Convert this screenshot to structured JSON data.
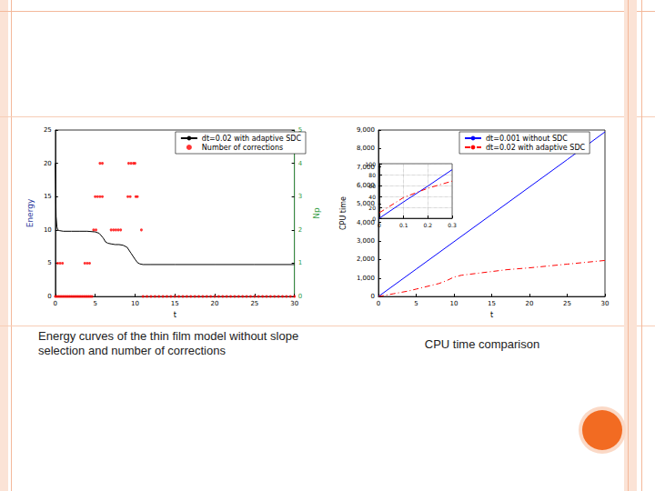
{
  "chart_data": [
    {
      "type": "line",
      "caption": "Energy curves of the thin film model without slope selection and number of corrections",
      "x_label": "t",
      "y_label": "Energy",
      "y2_label": "Np",
      "xlim": [
        0,
        30
      ],
      "xticks": [
        0,
        5,
        10,
        15,
        20,
        25,
        30
      ],
      "ylim": [
        0,
        25
      ],
      "yticks": [
        0,
        5,
        10,
        15,
        20,
        25
      ],
      "y2lim": [
        0,
        5
      ],
      "y2ticks": [
        0,
        1,
        2,
        3,
        4,
        5
      ],
      "grid": false,
      "legend": "upper right",
      "series": [
        {
          "name": "dt=0.02 with adaptive SDC",
          "type": "line",
          "color": "#000000",
          "line_style": "solid",
          "x": [
            0,
            0.05,
            0.1,
            0.2,
            0.3,
            0.5,
            1,
            2,
            3,
            4,
            5,
            5.5,
            6,
            6.3,
            6.6,
            7,
            7.5,
            8,
            8.5,
            9,
            9.5,
            10,
            10.3,
            10.6,
            11,
            12,
            15,
            20,
            25,
            30
          ],
          "values": [
            20,
            16,
            12,
            10.5,
            10,
            9.9,
            9.8,
            9.8,
            9.8,
            9.8,
            9.7,
            9.5,
            8.8,
            8.2,
            8.0,
            7.9,
            7.8,
            7.8,
            7.7,
            7.4,
            6.5,
            5.6,
            5.1,
            4.9,
            4.8,
            4.8,
            4.8,
            4.8,
            4.8,
            4.8
          ]
        },
        {
          "name": "Number of corrections",
          "type": "scatter",
          "color": "#ff0000",
          "marker": "dot",
          "axis": "y2",
          "x": [
            0,
            0.2,
            0.4,
            0.6,
            0.8,
            1,
            1.2,
            1.4,
            1.6,
            1.8,
            2,
            2.2,
            2.4,
            2.6,
            2.8,
            3,
            3.2,
            3.4,
            3.6,
            3.8,
            4,
            4.2,
            4.4,
            4.6,
            11,
            11.5,
            12,
            12.5,
            13,
            13.5,
            14,
            14.5,
            15,
            15.5,
            16,
            16.5,
            17,
            17.5,
            18,
            18.5,
            19,
            19.5,
            20,
            20.5,
            21,
            21.5,
            22,
            22.5,
            23,
            23.5,
            24,
            24.5,
            25,
            25.5,
            26,
            26.5,
            27,
            27.5,
            28,
            28.5,
            29,
            29.5,
            30,
            0.3,
            0.6,
            0.9,
            3.7,
            4.0,
            4.3,
            4.8,
            5.1,
            7.0,
            7.3,
            7.6,
            7.9,
            8.2,
            10.8,
            5.0,
            5.3,
            5.6,
            5.9,
            9.1,
            9.4,
            10.1,
            10.3,
            5.6,
            5.9,
            9.2,
            9.5,
            9.8,
            10.0
          ],
          "values": [
            0,
            0,
            0,
            0,
            0,
            0,
            0,
            0,
            0,
            0,
            0,
            0,
            0,
            0,
            0,
            0,
            0,
            0,
            0,
            0,
            0,
            0,
            0,
            0,
            0,
            0,
            0,
            0,
            0,
            0,
            0,
            0,
            0,
            0,
            0,
            0,
            0,
            0,
            0,
            0,
            0,
            0,
            0,
            0,
            0,
            0,
            0,
            0,
            0,
            0,
            0,
            0,
            0,
            0,
            0,
            0,
            0,
            0,
            0,
            0,
            0,
            0,
            0,
            1,
            1,
            1,
            1,
            1,
            1,
            2,
            2,
            2,
            2,
            2,
            2,
            2,
            2,
            3,
            3,
            3,
            3,
            3,
            3,
            3,
            3,
            4,
            4,
            4,
            4,
            4,
            4
          ]
        }
      ]
    },
    {
      "type": "line",
      "caption": "CPU time comparison",
      "x_label": "t",
      "y_label": "CPU time",
      "xlim": [
        0,
        30
      ],
      "xticks": [
        0,
        5,
        10,
        15,
        20,
        25,
        30
      ],
      "ylim": [
        0,
        9000
      ],
      "yticks": [
        0,
        1000,
        2000,
        3000,
        4000,
        5000,
        6000,
        7000,
        8000,
        9000
      ],
      "grid": false,
      "legend": "upper right",
      "series": [
        {
          "name": "dt=0.001 without SDC",
          "color": "#0000ff",
          "line_style": "solid",
          "x": [
            0,
            5,
            10,
            15,
            20,
            25,
            30
          ],
          "values": [
            0,
            1480,
            2960,
            4440,
            5920,
            7400,
            8900
          ]
        },
        {
          "name": "dt=0.02 with adaptive SDC",
          "color": "#ff0000",
          "line_style": "dashdot",
          "x": [
            0,
            2,
            4,
            5,
            6,
            7,
            8,
            9,
            10,
            11,
            13,
            15,
            17,
            20,
            25,
            30
          ],
          "values": [
            0,
            150,
            300,
            400,
            500,
            600,
            700,
            850,
            1050,
            1150,
            1250,
            1350,
            1450,
            1550,
            1750,
            1950
          ]
        }
      ]
    },
    {
      "type": "line",
      "xlim": [
        0,
        0.3
      ],
      "xticks": [
        0,
        0.1,
        0.2,
        0.3
      ],
      "ylim": [
        0,
        100
      ],
      "yticks": [
        0,
        20,
        40,
        60,
        80,
        100
      ],
      "grid": true,
      "series": [
        {
          "color": "#0000ff",
          "line_style": "solid",
          "x": [
            0,
            0.1,
            0.2,
            0.3
          ],
          "values": [
            0,
            30,
            59,
            89
          ]
        },
        {
          "color": "#ff0000",
          "line_style": "dashdot",
          "x": [
            0,
            0.1,
            0.2,
            0.3
          ],
          "values": [
            10,
            38,
            55,
            68
          ]
        }
      ]
    }
  ]
}
